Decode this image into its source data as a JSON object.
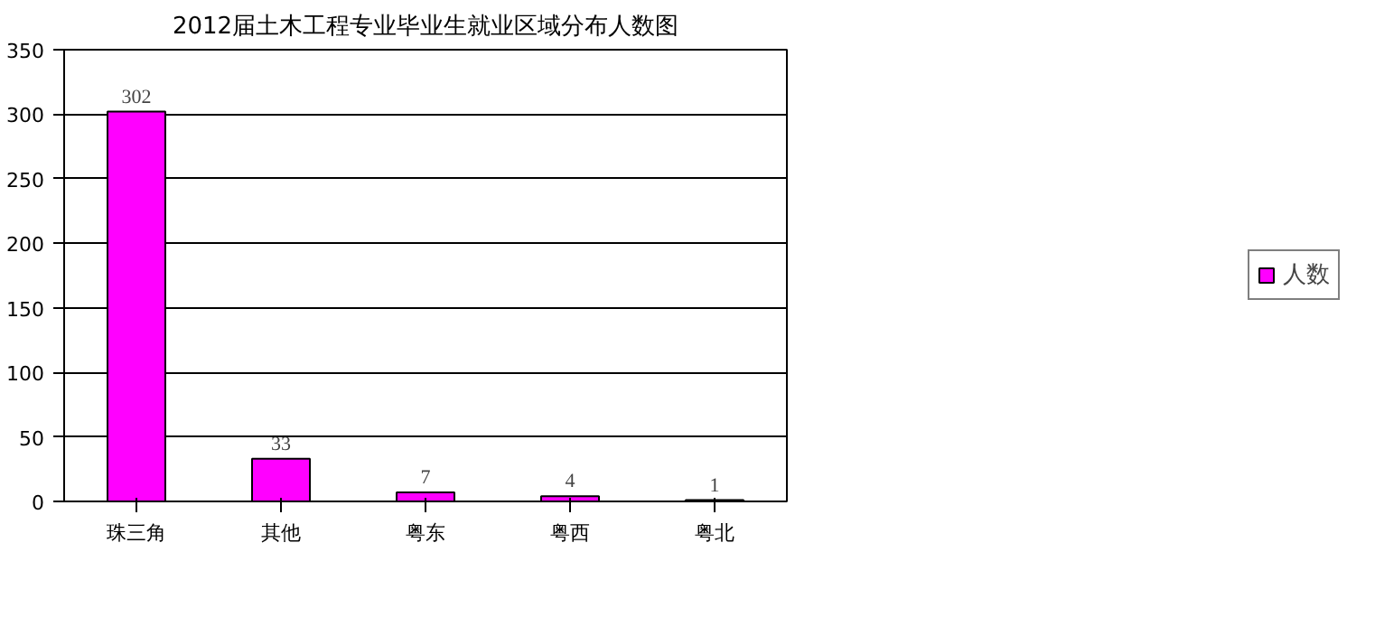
{
  "chart_data": {
    "type": "bar",
    "title": "2012届土木工程专业毕业生就业区域分布人数图",
    "categories": [
      "珠三角",
      "其他",
      "粤东",
      "粤西",
      "粤北"
    ],
    "series": [
      {
        "name": "人数",
        "color": "#ff00ff",
        "values": [
          302,
          33,
          7,
          4,
          1
        ]
      }
    ],
    "ylim": [
      0,
      350
    ],
    "yticks": [
      0,
      50,
      100,
      150,
      200,
      250,
      300,
      350
    ],
    "grid": "y",
    "legend": "right",
    "data_labels": true
  }
}
